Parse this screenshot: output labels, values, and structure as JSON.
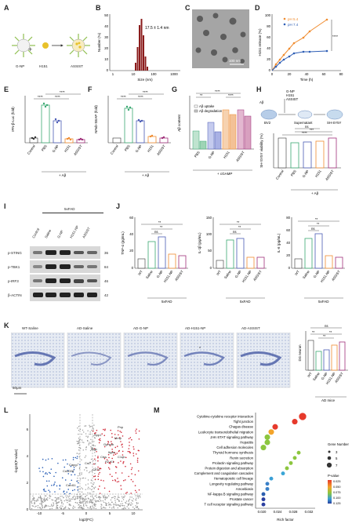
{
  "labels": {
    "A": "A",
    "B": "B",
    "C": "C",
    "D": "D",
    "E": "E",
    "F": "F",
    "G": "G",
    "H": "H",
    "I": "I",
    "J": "J",
    "K": "K",
    "L": "L",
    "M": "M"
  },
  "panelA": {
    "gnp": "G-NP",
    "h151": "H151",
    "assist": "ASSIST",
    "plus": "+"
  },
  "panelB": {
    "annotation": "17.5 ± 1.4 nm",
    "ylabel": "Number (%)",
    "xlabel": "Size (nm)",
    "xticks": [
      "1",
      "10",
      "100",
      "1000"
    ],
    "yticks": [
      "0",
      "10",
      "20",
      "30",
      "40",
      "50"
    ]
  },
  "panelC": {
    "scalebar": "100 nm"
  },
  "panelD": {
    "ylabel": "H151 release (%)",
    "xlabel": "Time (h)",
    "legend": [
      "pH 5.4",
      "pH 7.4"
    ],
    "sig": "****",
    "xticks": [
      "0",
      "20",
      "40",
      "60",
      "80"
    ],
    "yticks": [
      "0",
      "20",
      "40",
      "60",
      "80",
      "100"
    ]
  },
  "panelE": {
    "ylabel": "IFN-β-Luc (fold)",
    "groups": [
      "Control",
      "PBS",
      "G-NP",
      "H151",
      "ASSIST"
    ],
    "treat": "+ Aβ",
    "sig": [
      "****",
      "****",
      "****"
    ]
  },
  "panelF": {
    "ylabel": "NFκb-SEAP (fold)",
    "groups": [
      "Control",
      "PBS",
      "G-NP",
      "H151",
      "ASSIST"
    ],
    "treat": "+ Aβ",
    "sig": [
      "****",
      "****",
      "****"
    ]
  },
  "panelG": {
    "ylabel": "Aβ content",
    "legend": [
      "Aβ uptake",
      "Aβ degradation"
    ],
    "groups": [
      "PBS",
      "G-NP",
      "H151",
      "ASSIST"
    ],
    "treat": "+ cGAMP",
    "sig": [
      "**",
      "****",
      "****"
    ]
  },
  "panelH": {
    "schema": [
      "Aβ",
      "G-NP",
      "H151",
      "ASSIST",
      "BV2",
      "Supernatant",
      "SH-SY5Y"
    ],
    "ylabel": "SH-SY5Y viability (%)",
    "groups": [
      "Control",
      "PBS",
      "G-NP",
      "H151",
      "ASSIST"
    ],
    "treat": "+ Aβ",
    "sig": [
      "****",
      "***",
      "ns"
    ]
  },
  "panelI": {
    "header": "5xFAD",
    "lanes": [
      "Control",
      "Saline",
      "G-NP",
      "H151-NP",
      "ASSIST"
    ],
    "rows": [
      "p-STING",
      "p-TBK1",
      "p-IRF3",
      "β-ACTIN"
    ],
    "kd": [
      "36",
      "84",
      "46",
      "42"
    ]
  },
  "panelJ": {
    "charts": [
      {
        "ylabel": "TNF-α (pg/mL)",
        "yticks": [
          "0",
          "20",
          "40",
          "60"
        ],
        "groups": [
          "WT",
          "Saline",
          "G-NP",
          "H151-NP",
          "ASSIST"
        ],
        "treat": "5xFAD",
        "sig": [
          "**",
          "**",
          "ns"
        ]
      },
      {
        "ylabel": "IL-1β (pg/mL)",
        "yticks": [
          "0",
          "50",
          "100",
          "150"
        ],
        "groups": [
          "WT",
          "Saline",
          "G-NP",
          "H151-NP",
          "ASSIST"
        ],
        "treat": "5xFAD",
        "sig": [
          "**",
          "**",
          "ns"
        ]
      },
      {
        "ylabel": "IL-6 (pg/mL)",
        "yticks": [
          "0",
          "20",
          "40",
          "60",
          "80"
        ],
        "groups": [
          "WT",
          "Saline",
          "G-NP",
          "H151-NP",
          "ASSIST"
        ],
        "treat": "5xFAD",
        "sig": [
          "**",
          "**",
          "ns"
        ]
      }
    ]
  },
  "panelK": {
    "titles": [
      "WT-Saline",
      "AD-Saline",
      "AD-G-NP",
      "AD-H151-NP",
      "AD-ASSIST"
    ],
    "scalebar": "50μm",
    "ylabel": "DG neuron",
    "groups": [
      "WT",
      "Saline",
      "G-NP",
      "H151-NP",
      "ASSIST"
    ],
    "treat": "AD mice",
    "sig": [
      "ns",
      "**",
      "**",
      "**"
    ]
  },
  "panelL": {
    "ylabel": "-log10(P-value)",
    "xlabel": "log2(FC)",
    "genes": [
      "Pnp",
      "Mmp",
      "Gpnmb",
      "Itgax",
      "Ctss",
      "H2-K1",
      "C1qb",
      "Spp1",
      "Mgp",
      "Cst7",
      "Cd300lf",
      "Capg",
      "Card11",
      "Cd74"
    ],
    "xticks": [
      "-10",
      "-5",
      "0",
      "5",
      "10"
    ],
    "yticks": [
      "0",
      "2",
      "4",
      "6"
    ]
  },
  "panelM": {
    "xlabel": "Rich factor",
    "xticks": [
      "0.020",
      "0.024",
      "0.028",
      "0.032"
    ],
    "pathways": [
      "Cytokine-cytokine receptor interaction",
      "Tight junction",
      "Chagas disease",
      "Leukocyte transendothelial migration",
      "JAK-STAT signaling pathway",
      "Hepatitis",
      "Cell adhesion molecules",
      "Thyroid hormone synthesis",
      "Renin secretion",
      "Prolactin signaling pathway",
      "Protein digestion and absorption",
      "Complement and coagulation cascades",
      "Hematopoietic cell lineage",
      "Longevity regulating pathway",
      "Amoebiasis",
      "NF-kappa B signaling pathway",
      "Prostate cancer",
      "T cell receptor signaling pathway"
    ],
    "legend_size_title": "Gene Number",
    "legend_sizes": [
      "3",
      "5",
      "7"
    ],
    "legend_p_title": "P-value",
    "legend_p": [
      "0.025",
      "0.050",
      "0.075",
      "0.100",
      "0.125"
    ]
  }
}
